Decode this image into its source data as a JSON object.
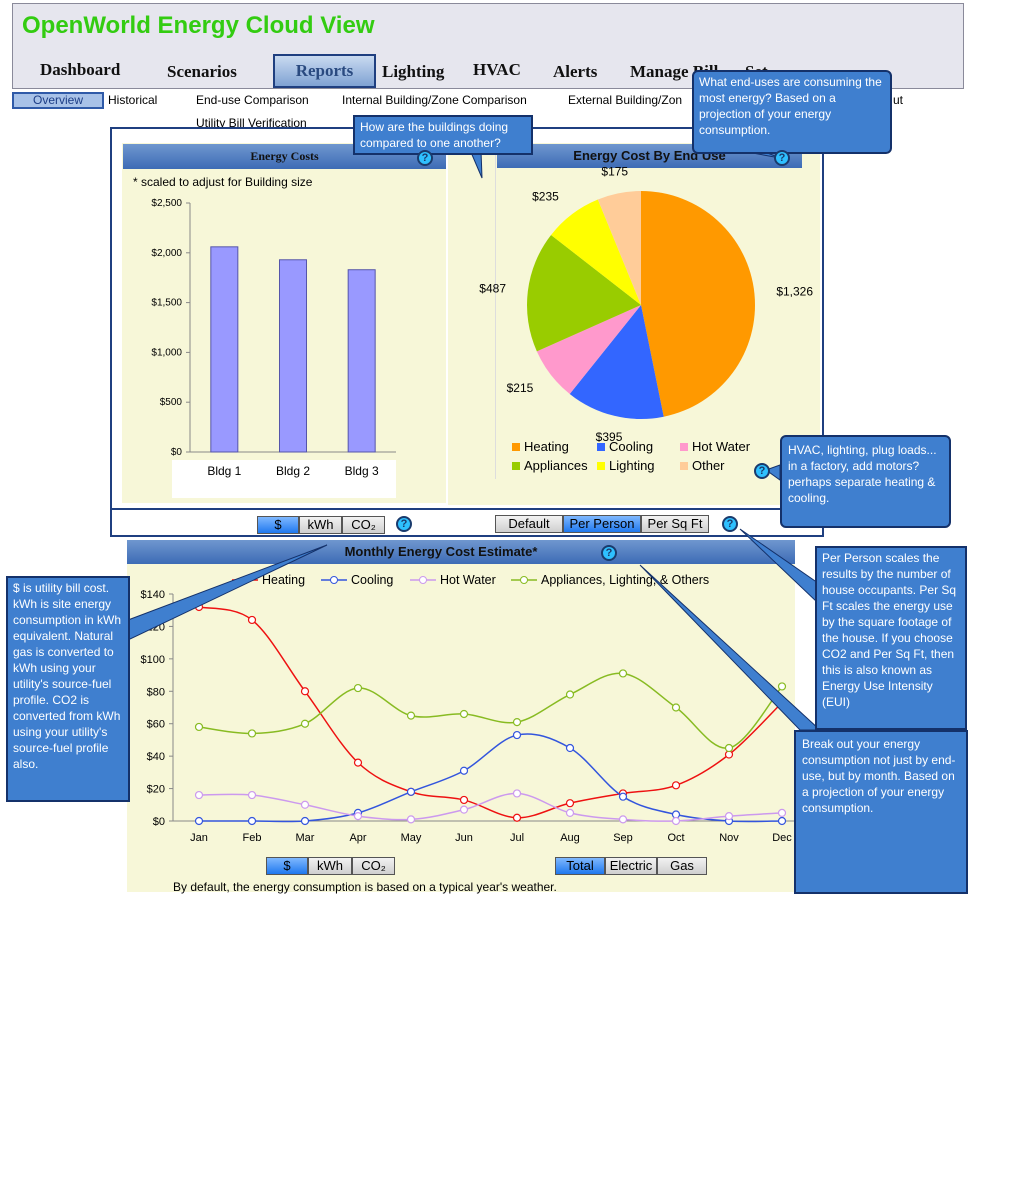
{
  "app": {
    "title": "OpenWorld Energy Cloud View"
  },
  "nav": {
    "dashboard": "Dashboard",
    "scenarios": "Scenarios",
    "reports": "Reports",
    "lighting": "Lighting",
    "hvac": "HVAC",
    "alerts": "Alerts",
    "manage_bills": "Manage Bill",
    "setup": "Set"
  },
  "subnav": {
    "overview": "Overview",
    "historical": "Historical",
    "end_use_comparison": "End-use Comparison",
    "internal_comparison": "Internal Building/Zone Comparison",
    "external_comparison": "External Building/Zon",
    "utility_bill": "Utility Bill Verification",
    "about": "ut"
  },
  "energy_costs": {
    "title": "Energy Costs",
    "note": "* scaled to adjust for Building size"
  },
  "end_use_panel": {
    "title": "Energy Cost By End Use"
  },
  "monthly_panel": {
    "title": "Monthly Energy Cost Estimate*"
  },
  "toggles": {
    "dollar": "$",
    "kwh": "kWh",
    "co2": "CO₂",
    "default": "Default",
    "per_person": "Per Person",
    "per_sq_ft": "Per Sq Ft",
    "total": "Total",
    "electric": "Electric",
    "gas": "Gas"
  },
  "help_glyph": "?",
  "footnote": "By default, the energy consumption is based on a typical year's weather.",
  "callouts": {
    "buildings": "How are the buildings doing compared to one another?",
    "end_uses": "What end-uses are consuming the most energy?  Based on a projection of your energy consumption.",
    "hvac": "HVAC, lighting, plug loads... in a factory, add motors?  perhaps separate heating & cooling.",
    "units": "$ is utility bill cost.  kWh is site energy consumption in kWh equivalent.  Natural gas is converted to kWh using your utility's source-fuel profile.  CO2 is converted from kWh using your utility's source-fuel profile also.",
    "per_person": "Per Person scales the results by the number of house occupants.  Per Sq Ft scales the energy use by the square footage of the house.  If you choose CO2 and Per Sq Ft, then this is also known as Energy Use Intensity (EUI)",
    "breakout": "Break out your energy consumption not just by end-use, but by month.  Based on a projection of your energy consumption."
  },
  "chart_data": [
    {
      "type": "bar",
      "title": "Energy Costs",
      "categories": [
        "Bldg 1",
        "Bldg 2",
        "Bldg 3"
      ],
      "values": [
        2060,
        1930,
        1830
      ],
      "ylim": [
        0,
        2500
      ],
      "yticks": [
        "$0",
        "$500",
        "$1,000",
        "$1,500",
        "$2,000",
        "$2,500"
      ],
      "ytick_values": [
        0,
        500,
        1000,
        1500,
        2000,
        2500
      ],
      "color": "#9999ff"
    },
    {
      "type": "pie",
      "title": "Energy Cost By End Use",
      "slices": [
        {
          "name": "Heating",
          "value": 1326,
          "label": "$1,326",
          "color": "#ff9900"
        },
        {
          "name": "Cooling",
          "value": 395,
          "label": "$395",
          "color": "#3366ff"
        },
        {
          "name": "Hot Water",
          "value": 215,
          "label": "$215",
          "color": "#ff99cc"
        },
        {
          "name": "Appliances",
          "value": 487,
          "label": "$487",
          "color": "#99cc00"
        },
        {
          "name": "Lighting",
          "value": 235,
          "label": "$235",
          "color": "#ffff00"
        },
        {
          "name": "Other",
          "value": 175,
          "label": "$175",
          "color": "#ffcc99"
        }
      ],
      "legend": "bottom"
    },
    {
      "type": "line",
      "title": "Monthly Energy Cost Estimate*",
      "categories": [
        "Jan",
        "Feb",
        "Mar",
        "Apr",
        "May",
        "Jun",
        "Jul",
        "Aug",
        "Sep",
        "Oct",
        "Nov",
        "Dec"
      ],
      "ylim": [
        0,
        140
      ],
      "yticks": [
        "$0",
        "$20",
        "$40",
        "$60",
        "$80",
        "$100",
        "$120",
        "$140"
      ],
      "ytick_values": [
        0,
        20,
        40,
        60,
        80,
        100,
        120,
        140
      ],
      "series": [
        {
          "name": "Heating",
          "color": "#ee1111",
          "values": [
            132,
            124,
            80,
            36,
            18,
            13,
            2,
            11,
            17,
            22,
            41,
            73
          ]
        },
        {
          "name": "Cooling",
          "color": "#3355dd",
          "values": [
            0,
            0,
            0,
            5,
            18,
            31,
            53,
            45,
            15,
            4,
            0,
            0
          ]
        },
        {
          "name": "Hot Water",
          "color": "#cc99ee",
          "values": [
            16,
            16,
            10,
            3,
            1,
            7,
            17,
            5,
            1,
            0,
            3,
            5
          ]
        },
        {
          "name": "Appliances, Lighting, & Others",
          "color": "#88bb22",
          "values": [
            58,
            54,
            60,
            82,
            65,
            66,
            61,
            78,
            91,
            70,
            45,
            83
          ]
        }
      ],
      "legend": "top"
    }
  ]
}
